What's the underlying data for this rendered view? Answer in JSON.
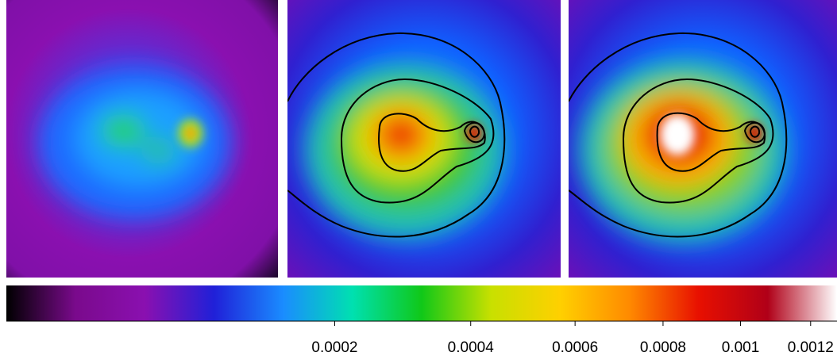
{
  "chart_data": {
    "type": "colorbar",
    "scale": "sqrt",
    "xlim": [
      0,
      0.00128
    ],
    "xticks": [
      0.0002,
      0.0004,
      0.0006,
      0.0008,
      0.001,
      0.0012
    ],
    "colormap": [
      "#000000",
      "#7a0a8c",
      "#8a10b0",
      "#2020d8",
      "#1a8cff",
      "#00e0b0",
      "#10c818",
      "#c8e000",
      "#ffd000",
      "#ff8a00",
      "#e81000",
      "#b00018",
      "#ffffff"
    ]
  }
}
